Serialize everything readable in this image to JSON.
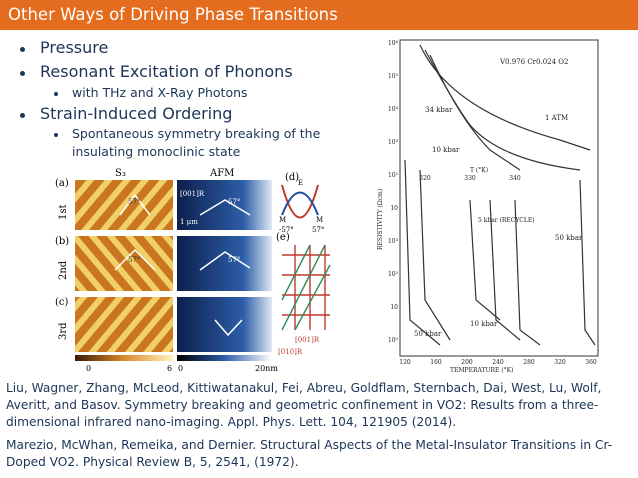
{
  "header": {
    "title": "Other Ways of Driving Phase Transitions"
  },
  "bullets": [
    {
      "text": "Pressure",
      "sub": []
    },
    {
      "text": "Resonant Excitation of Phonons",
      "sub": [
        "with THz and X-Ray Photons"
      ]
    },
    {
      "text": "Strain-Induced Ordering",
      "sub": [
        "Spontaneous symmetry breaking of the insulating monoclinic state"
      ]
    }
  ],
  "figure_left": {
    "panel_labels": [
      "(a)",
      "(b)",
      "(c)",
      "(d)",
      "(e)"
    ],
    "column_labels": [
      "S₃",
      "AFM"
    ],
    "row_labels": [
      "1st",
      "2nd",
      "3rd"
    ],
    "scale_labels": [
      "0",
      "6",
      "0",
      "20nm"
    ],
    "annotations": [
      "[001]R",
      "1 μm",
      "57°",
      "57°",
      "57°",
      "57°",
      "E",
      "M",
      "M",
      "-57°",
      "57°",
      "[001]R",
      "[010]R"
    ]
  },
  "figure_right": {
    "compound": "V0.976 Cr0.024 O2",
    "y_label": "RESISTIVITY (Ωcm)",
    "x_label": "TEMPERATURE (°K)",
    "top_label": "T (°K)",
    "curve_labels": [
      "34 kbar",
      "1 ATM",
      "10 kbar",
      "5 kbar (RECYCLE)",
      "50 kbar",
      "10 kbar",
      "50 kbar"
    ],
    "y_tick_labels": [
      "10⁶",
      "10⁵",
      "10⁴",
      "10³",
      "10²",
      "10",
      "10³",
      "10²",
      "10",
      "10⁰"
    ],
    "x_tick_labels": [
      "120",
      "160",
      "200",
      "240",
      "280",
      "320",
      "360"
    ],
    "top_tick_labels": [
      "320",
      "330",
      "340"
    ]
  },
  "references": [
    "Liu, Wagner, Zhang, McLeod, Kittiwatanakul, Fei, Abreu, Goldflam, Sternbach, Dai, West, Lu, Wolf, Averitt, and Basov. Symmetry breaking and geometric confinement in VO2: Results from a three-dimensional infrared nano-imaging. Appl. Phys. Lett. 104, 121905 (2014).",
    "Marezio, McWhan, Remeika, and Dernier.  Structural Aspects of the Metal-Insulator Transitions in Cr-Doped VO2. Physical Review B, 5, 2541, (1972)."
  ]
}
